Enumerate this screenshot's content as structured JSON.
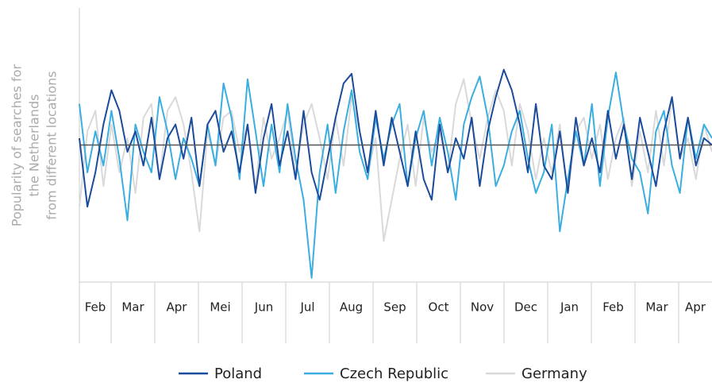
{
  "chart_data": {
    "type": "line",
    "y_label": [
      "Popularity of searches for",
      "the Netherlands",
      "from different locations"
    ],
    "months": [
      "Feb",
      "Mar",
      "Apr",
      "Mei",
      "Jun",
      "Jul",
      "Aug",
      "Sep",
      "Oct",
      "Nov",
      "Dec",
      "Jan",
      "Feb",
      "Mar",
      "Apr"
    ],
    "ylim": [
      -100,
      100
    ],
    "series": [
      {
        "name": "Poland",
        "color": "#1b4b9b",
        "values": [
          5,
          -45,
          -20,
          15,
          40,
          25,
          -5,
          10,
          -15,
          20,
          -25,
          5,
          15,
          -10,
          20,
          -30,
          15,
          25,
          -5,
          10,
          -20,
          15,
          -35,
          5,
          30,
          -15,
          10,
          -25,
          25,
          -20,
          -40,
          -10,
          20,
          45,
          52,
          10,
          -20,
          25,
          -15,
          20,
          -5,
          -30,
          10,
          -25,
          -40,
          15,
          -20,
          5,
          -10,
          20,
          -30,
          10,
          35,
          55,
          40,
          15,
          -20,
          30,
          -15,
          -25,
          10,
          -35,
          20,
          -15,
          5,
          -20,
          25,
          -10,
          15,
          -25,
          20,
          -5,
          -30,
          10,
          35,
          -10,
          20,
          -15,
          5,
          0
        ]
      },
      {
        "name": "Czech Republic",
        "color": "#3aaee0",
        "values": [
          30,
          -20,
          10,
          -15,
          25,
          -10,
          -55,
          15,
          -5,
          -20,
          35,
          10,
          -25,
          5,
          -10,
          -30,
          15,
          -15,
          45,
          20,
          -25,
          48,
          10,
          -30,
          15,
          -20,
          30,
          -10,
          -40,
          -97,
          -20,
          15,
          -35,
          10,
          40,
          -5,
          -25,
          20,
          -10,
          15,
          30,
          -30,
          5,
          25,
          -15,
          20,
          -5,
          -40,
          15,
          35,
          50,
          20,
          -30,
          -15,
          10,
          25,
          -10,
          -35,
          -20,
          15,
          -63,
          -25,
          10,
          -15,
          30,
          -30,
          20,
          53,
          15,
          -10,
          -20,
          -50,
          10,
          25,
          -15,
          -35,
          20,
          -10,
          15,
          5
        ]
      },
      {
        "name": "Germany",
        "color": "#d9d9d9",
        "values": [
          -45,
          10,
          25,
          -30,
          15,
          -20,
          5,
          -35,
          20,
          30,
          -25,
          25,
          35,
          15,
          -20,
          -63,
          10,
          -15,
          20,
          25,
          -5,
          15,
          -30,
          20,
          -10,
          5,
          25,
          -20,
          15,
          30,
          5,
          -25,
          20,
          -15,
          35,
          10,
          -20,
          5,
          -70,
          -40,
          -10,
          15,
          -30,
          20,
          -5,
          10,
          -20,
          30,
          48,
          15,
          -10,
          20,
          40,
          25,
          -15,
          30,
          10,
          -25,
          5,
          -20,
          15,
          -35,
          10,
          20,
          -10,
          15,
          -25,
          5,
          20,
          -30,
          10,
          -20,
          25,
          -15,
          35,
          -10,
          5,
          -25,
          15,
          -5
        ]
      }
    ]
  }
}
